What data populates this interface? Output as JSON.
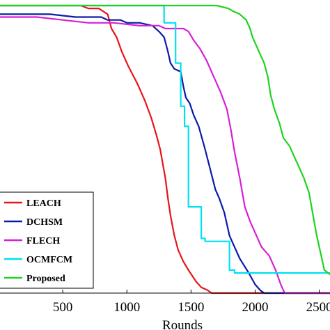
{
  "chart_data": {
    "type": "line",
    "title": "",
    "xlabel": "Rounds",
    "ylabel": "",
    "xlim": [
      0,
      2600
    ],
    "ylim": [
      0,
      100
    ],
    "x_ticks": [
      500,
      1000,
      1500,
      2000,
      2500
    ],
    "x_tick_labels": [
      "500",
      "1000",
      "1500",
      "2000",
      "2500"
    ],
    "grid": false,
    "legend_position": "bottom-left",
    "series": [
      {
        "name": "LEACH",
        "color": "#e8141b",
        "points": [
          [
            0,
            100
          ],
          [
            640,
            100
          ],
          [
            700,
            99
          ],
          [
            780,
            99
          ],
          [
            850,
            97
          ],
          [
            880,
            92
          ],
          [
            920,
            89
          ],
          [
            960,
            84
          ],
          [
            1010,
            79
          ],
          [
            1080,
            73
          ],
          [
            1140,
            67
          ],
          [
            1190,
            61
          ],
          [
            1230,
            55
          ],
          [
            1260,
            50
          ],
          [
            1280,
            45
          ],
          [
            1300,
            40
          ],
          [
            1320,
            33
          ],
          [
            1340,
            27
          ],
          [
            1370,
            20
          ],
          [
            1400,
            15
          ],
          [
            1440,
            11
          ],
          [
            1480,
            8
          ],
          [
            1510,
            6
          ],
          [
            1540,
            4
          ],
          [
            1580,
            2
          ],
          [
            1630,
            1
          ],
          [
            1660,
            0
          ],
          [
            2600,
            0
          ]
        ]
      },
      {
        "name": "DCHSM",
        "color": "#0a1aa8",
        "points": [
          [
            0,
            97
          ],
          [
            400,
            97
          ],
          [
            600,
            96
          ],
          [
            800,
            96
          ],
          [
            850,
            95
          ],
          [
            950,
            95
          ],
          [
            1000,
            94
          ],
          [
            1100,
            94
          ],
          [
            1200,
            93
          ],
          [
            1250,
            91
          ],
          [
            1290,
            89
          ],
          [
            1320,
            84
          ],
          [
            1340,
            80
          ],
          [
            1370,
            78
          ],
          [
            1420,
            77
          ],
          [
            1440,
            72
          ],
          [
            1460,
            68
          ],
          [
            1490,
            66
          ],
          [
            1520,
            62
          ],
          [
            1560,
            58
          ],
          [
            1610,
            50
          ],
          [
            1650,
            43
          ],
          [
            1690,
            36
          ],
          [
            1720,
            33
          ],
          [
            1760,
            28
          ],
          [
            1780,
            24
          ],
          [
            1800,
            20
          ],
          [
            1830,
            17
          ],
          [
            1880,
            12
          ],
          [
            1950,
            7
          ],
          [
            2000,
            3
          ],
          [
            2040,
            1
          ],
          [
            2070,
            0
          ],
          [
            2600,
            0
          ]
        ]
      },
      {
        "name": "FLECH",
        "color": "#d620d8",
        "points": [
          [
            0,
            96
          ],
          [
            300,
            96
          ],
          [
            500,
            95
          ],
          [
            700,
            94
          ],
          [
            900,
            94
          ],
          [
            1100,
            93
          ],
          [
            1250,
            93
          ],
          [
            1300,
            92
          ],
          [
            1440,
            92
          ],
          [
            1480,
            91
          ],
          [
            1520,
            88
          ],
          [
            1570,
            85
          ],
          [
            1620,
            81
          ],
          [
            1680,
            75
          ],
          [
            1730,
            70
          ],
          [
            1780,
            64
          ],
          [
            1810,
            57
          ],
          [
            1840,
            49
          ],
          [
            1880,
            40
          ],
          [
            1920,
            30
          ],
          [
            1960,
            25
          ],
          [
            2000,
            21
          ],
          [
            2050,
            16
          ],
          [
            2110,
            13
          ],
          [
            2160,
            8
          ],
          [
            2200,
            3
          ],
          [
            2230,
            0
          ],
          [
            2600,
            0
          ]
        ]
      },
      {
        "name": "OCMFCM",
        "color": "#00e0f0",
        "points": [
          [
            0,
            100
          ],
          [
            1290,
            100
          ],
          [
            1290,
            94
          ],
          [
            1380,
            94
          ],
          [
            1380,
            80
          ],
          [
            1420,
            80
          ],
          [
            1420,
            65
          ],
          [
            1450,
            65
          ],
          [
            1450,
            58
          ],
          [
            1480,
            58
          ],
          [
            1480,
            30
          ],
          [
            1580,
            30
          ],
          [
            1580,
            19
          ],
          [
            1610,
            19
          ],
          [
            1610,
            18
          ],
          [
            1800,
            18
          ],
          [
            1800,
            8
          ],
          [
            1840,
            8
          ],
          [
            1840,
            7
          ],
          [
            2600,
            7
          ]
        ]
      },
      {
        "name": "Proposed",
        "color": "#1ed41e",
        "points": [
          [
            0,
            100
          ],
          [
            1700,
            100
          ],
          [
            1790,
            99
          ],
          [
            1830,
            98
          ],
          [
            1880,
            97
          ],
          [
            1930,
            95
          ],
          [
            1960,
            92
          ],
          [
            1980,
            89
          ],
          [
            2010,
            86
          ],
          [
            2040,
            83
          ],
          [
            2070,
            80
          ],
          [
            2100,
            75
          ],
          [
            2120,
            69
          ],
          [
            2150,
            64
          ],
          [
            2190,
            59
          ],
          [
            2220,
            54
          ],
          [
            2270,
            51
          ],
          [
            2300,
            48
          ],
          [
            2330,
            45
          ],
          [
            2380,
            40
          ],
          [
            2420,
            35
          ],
          [
            2440,
            30
          ],
          [
            2460,
            25
          ],
          [
            2480,
            20
          ],
          [
            2500,
            16
          ],
          [
            2520,
            12
          ],
          [
            2540,
            8
          ],
          [
            2600,
            6
          ]
        ]
      }
    ]
  }
}
